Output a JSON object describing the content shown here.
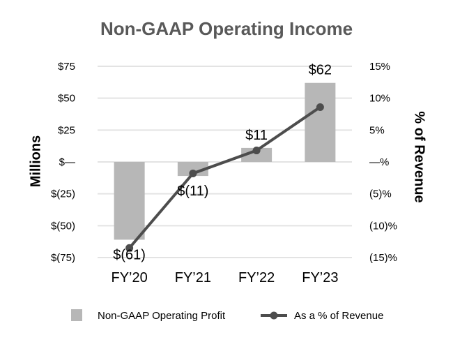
{
  "chart_data": {
    "type": "bar+line",
    "title": "Non-GAAP Operating Income",
    "categories": [
      "FY’20",
      "FY’21",
      "FY’22",
      "FY’23"
    ],
    "series": [
      {
        "name": "Non-GAAP Operating Profit",
        "type": "bar",
        "axis": "left",
        "values": [
          -61,
          -11,
          11,
          62
        ],
        "labels": [
          "$(61)",
          "$(11)",
          "$11",
          "$62"
        ],
        "color": "#b7b7b7"
      },
      {
        "name": "As a % of Revenue",
        "type": "line",
        "axis": "right",
        "values": [
          -13.5,
          -1.8,
          1.8,
          8.6
        ],
        "color": "#4d4d4d"
      }
    ],
    "left_axis": {
      "label": "Millions",
      "range": [
        -75,
        75
      ],
      "ticks": [
        75,
        50,
        25,
        0,
        -25,
        -50,
        -75
      ],
      "tick_labels": [
        "$75",
        "$50",
        "$25",
        "$—",
        "$(25)",
        "$(50)",
        "$(75)"
      ]
    },
    "right_axis": {
      "label": "% of Revenue",
      "range": [
        -15,
        15
      ],
      "ticks": [
        15,
        10,
        5,
        0,
        -5,
        -10,
        -15
      ],
      "tick_labels": [
        "15%",
        "10%",
        "5%",
        "—%",
        "(5)%",
        "(10)%",
        "(15)%"
      ]
    },
    "grid": true,
    "legend": "bottom"
  }
}
